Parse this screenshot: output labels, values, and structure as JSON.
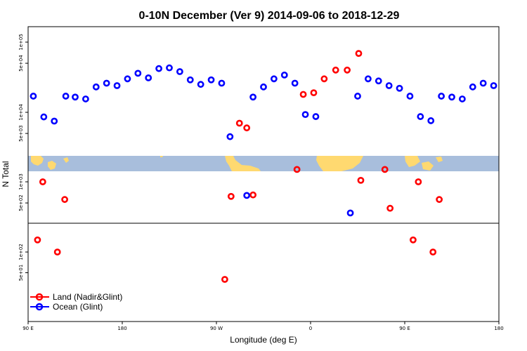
{
  "chart_data": {
    "type": "scatter",
    "title": "0-10N December (Ver 9)   2014-09-06 to 2018-12-29",
    "xlabel": "Longitude (deg E)",
    "ylabel": "N Total",
    "x_tick_labels": [
      "90 E",
      "180",
      "90 W",
      "0",
      "90 E",
      "180"
    ],
    "x_tick_values": [
      90,
      180,
      270,
      360,
      450,
      540
    ],
    "xlim": [
      90,
      540
    ],
    "scale": "log",
    "y_tick_labels": [
      "1e+05",
      "5e+04",
      "1e+04",
      "5e+03",
      "1e+03",
      "5e+02",
      "1e+02",
      "5e+01"
    ],
    "legend": {
      "position": "bottom-left"
    },
    "series": [
      {
        "name": "Land (Nadir&Glint)",
        "color": "#ff0000",
        "points": [
          {
            "x": 99,
            "y": 150
          },
          {
            "x": 104,
            "y": 1000
          },
          {
            "x": 118,
            "y": 100
          },
          {
            "x": 125,
            "y": 560
          },
          {
            "x": 278,
            "y": 40
          },
          {
            "x": 284,
            "y": 620
          },
          {
            "x": 292,
            "y": 7000
          },
          {
            "x": 299,
            "y": 6000
          },
          {
            "x": 305,
            "y": 650
          },
          {
            "x": 347,
            "y": 1500
          },
          {
            "x": 353,
            "y": 18000
          },
          {
            "x": 363,
            "y": 19000
          },
          {
            "x": 373,
            "y": 30000
          },
          {
            "x": 384,
            "y": 40000
          },
          {
            "x": 395,
            "y": 40000
          },
          {
            "x": 406,
            "y": 69000
          },
          {
            "x": 408,
            "y": 1050
          },
          {
            "x": 431,
            "y": 1500
          },
          {
            "x": 436,
            "y": 420
          },
          {
            "x": 458,
            "y": 150
          },
          {
            "x": 463,
            "y": 1000
          },
          {
            "x": 477,
            "y": 100
          },
          {
            "x": 483,
            "y": 560
          }
        ]
      },
      {
        "name": "Ocean (Glint)",
        "color": "#0000ff",
        "points": [
          {
            "x": 95,
            "y": 17000
          },
          {
            "x": 105,
            "y": 8600
          },
          {
            "x": 115,
            "y": 7500
          },
          {
            "x": 126,
            "y": 17000
          },
          {
            "x": 135,
            "y": 16500
          },
          {
            "x": 145,
            "y": 15500
          },
          {
            "x": 155,
            "y": 23000
          },
          {
            "x": 165,
            "y": 26000
          },
          {
            "x": 175,
            "y": 24000
          },
          {
            "x": 185,
            "y": 30000
          },
          {
            "x": 195,
            "y": 36000
          },
          {
            "x": 205,
            "y": 31000
          },
          {
            "x": 215,
            "y": 42000
          },
          {
            "x": 225,
            "y": 43000
          },
          {
            "x": 235,
            "y": 38000
          },
          {
            "x": 245,
            "y": 29000
          },
          {
            "x": 255,
            "y": 25000
          },
          {
            "x": 265,
            "y": 29000
          },
          {
            "x": 275,
            "y": 26000
          },
          {
            "x": 283,
            "y": 4500
          },
          {
            "x": 299,
            "y": 640
          },
          {
            "x": 305,
            "y": 16500
          },
          {
            "x": 315,
            "y": 23000
          },
          {
            "x": 325,
            "y": 30000
          },
          {
            "x": 335,
            "y": 34000
          },
          {
            "x": 345,
            "y": 26000
          },
          {
            "x": 355,
            "y": 9300
          },
          {
            "x": 365,
            "y": 8700
          },
          {
            "x": 398,
            "y": 360
          },
          {
            "x": 405,
            "y": 17000
          },
          {
            "x": 415,
            "y": 30000
          },
          {
            "x": 425,
            "y": 28000
          },
          {
            "x": 435,
            "y": 24000
          },
          {
            "x": 445,
            "y": 22000
          },
          {
            "x": 455,
            "y": 17000
          },
          {
            "x": 465,
            "y": 8700
          },
          {
            "x": 475,
            "y": 7600
          },
          {
            "x": 485,
            "y": 17000
          },
          {
            "x": 495,
            "y": 16500
          },
          {
            "x": 505,
            "y": 15500
          },
          {
            "x": 515,
            "y": 23000
          },
          {
            "x": 525,
            "y": 26000
          },
          {
            "x": 535,
            "y": 24000
          }
        ]
      }
    ]
  }
}
